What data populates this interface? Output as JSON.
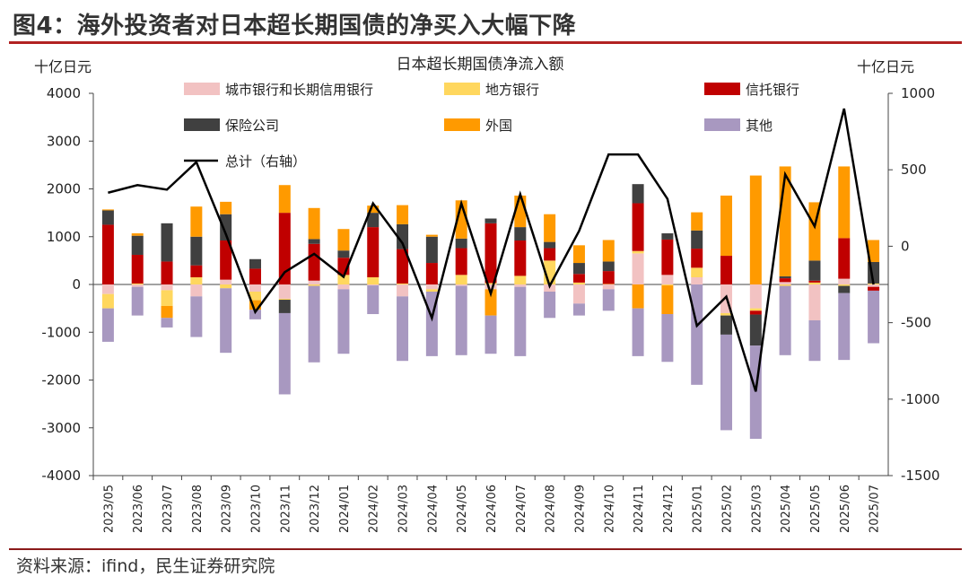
{
  "figure_title": "图4：海外投资者对日本超长期国债的净买入大幅下降",
  "source": "资料来源：ifind，民生证券研究院",
  "chart_data": {
    "type": "bar",
    "stacked": true,
    "title": "日本超长期国债净流入额",
    "ylabel_left": "十亿日元",
    "ylabel_right": "十亿日元",
    "ylim_left": [
      -4000,
      4000
    ],
    "yticks_left": [
      -4000,
      -3000,
      -2000,
      -1000,
      0,
      1000,
      2000,
      3000,
      4000
    ],
    "ylim_right": [
      -1500,
      1000
    ],
    "yticks_right": [
      -1500,
      -1000,
      -500,
      0,
      500,
      1000
    ],
    "categories": [
      "2023/05",
      "2023/06",
      "2023/07",
      "2023/08",
      "2023/09",
      "2023/10",
      "2023/11",
      "2023/12",
      "2024/01",
      "2024/02",
      "2024/03",
      "2024/04",
      "2024/05",
      "2024/06",
      "2024/07",
      "2024/08",
      "2024/09",
      "2024/10",
      "2024/11",
      "2024/12",
      "2025/01",
      "2025/02",
      "2025/03",
      "2025/04",
      "2025/05",
      "2025/06",
      "2025/07"
    ],
    "series": [
      {
        "name": "城市银行和长期信用银行",
        "color": "#f2c2c2",
        "values": [
          -200,
          -50,
          -120,
          -250,
          100,
          -150,
          -300,
          80,
          -100,
          -20,
          -250,
          -100,
          -30,
          -100,
          -50,
          -150,
          -400,
          -100,
          650,
          200,
          150,
          -600,
          -500,
          50,
          -750,
          120,
          -50
        ]
      },
      {
        "name": "地方银行",
        "color": "#ffd75e",
        "values": [
          -300,
          20,
          -330,
          150,
          -80,
          -180,
          -20,
          -30,
          200,
          150,
          20,
          -50,
          200,
          30,
          180,
          500,
          40,
          10,
          50,
          -20,
          200,
          -50,
          -50,
          -30,
          40,
          -30,
          20
        ]
      },
      {
        "name": "信托银行",
        "color": "#c00000",
        "values": [
          1250,
          600,
          480,
          250,
          820,
          330,
          1500,
          770,
          360,
          1050,
          720,
          450,
          560,
          1250,
          740,
          260,
          180,
          270,
          1000,
          740,
          400,
          600,
          -80,
          80,
          40,
          850,
          -80
        ]
      },
      {
        "name": "保险公司",
        "color": "#404040",
        "values": [
          300,
          400,
          800,
          600,
          550,
          200,
          -280,
          100,
          150,
          300,
          520,
          550,
          200,
          100,
          280,
          130,
          230,
          200,
          400,
          130,
          380,
          -400,
          -650,
          40,
          420,
          -150,
          450
        ]
      },
      {
        "name": "外国",
        "color": "#ff9a00",
        "values": [
          20,
          50,
          -250,
          630,
          260,
          -200,
          580,
          650,
          450,
          150,
          400,
          40,
          800,
          -550,
          660,
          580,
          370,
          450,
          -500,
          -600,
          380,
          1260,
          2280,
          2300,
          1220,
          1500,
          460
        ]
      },
      {
        "name": "其他",
        "color": "#a898c0",
        "values": [
          -700,
          -600,
          -200,
          -850,
          -1350,
          -200,
          -1700,
          -1600,
          -1350,
          -600,
          -1350,
          -1350,
          -1450,
          -800,
          -1450,
          -550,
          -250,
          -450,
          -1000,
          -1000,
          -2100,
          -2000,
          -1950,
          -1450,
          -850,
          -1400,
          -1100
        ]
      },
      {
        "name": "总计（右轴）",
        "color": "#000000",
        "line": true,
        "values": [
          350,
          400,
          370,
          550,
          80,
          -430,
          -170,
          -50,
          -200,
          280,
          20,
          -470,
          280,
          -310,
          340,
          -260,
          100,
          600,
          600,
          310,
          -520,
          -330,
          -950,
          470,
          130,
          900,
          -250
        ]
      }
    ],
    "legend_position": "top",
    "legend_columns": 3,
    "grid": false
  }
}
